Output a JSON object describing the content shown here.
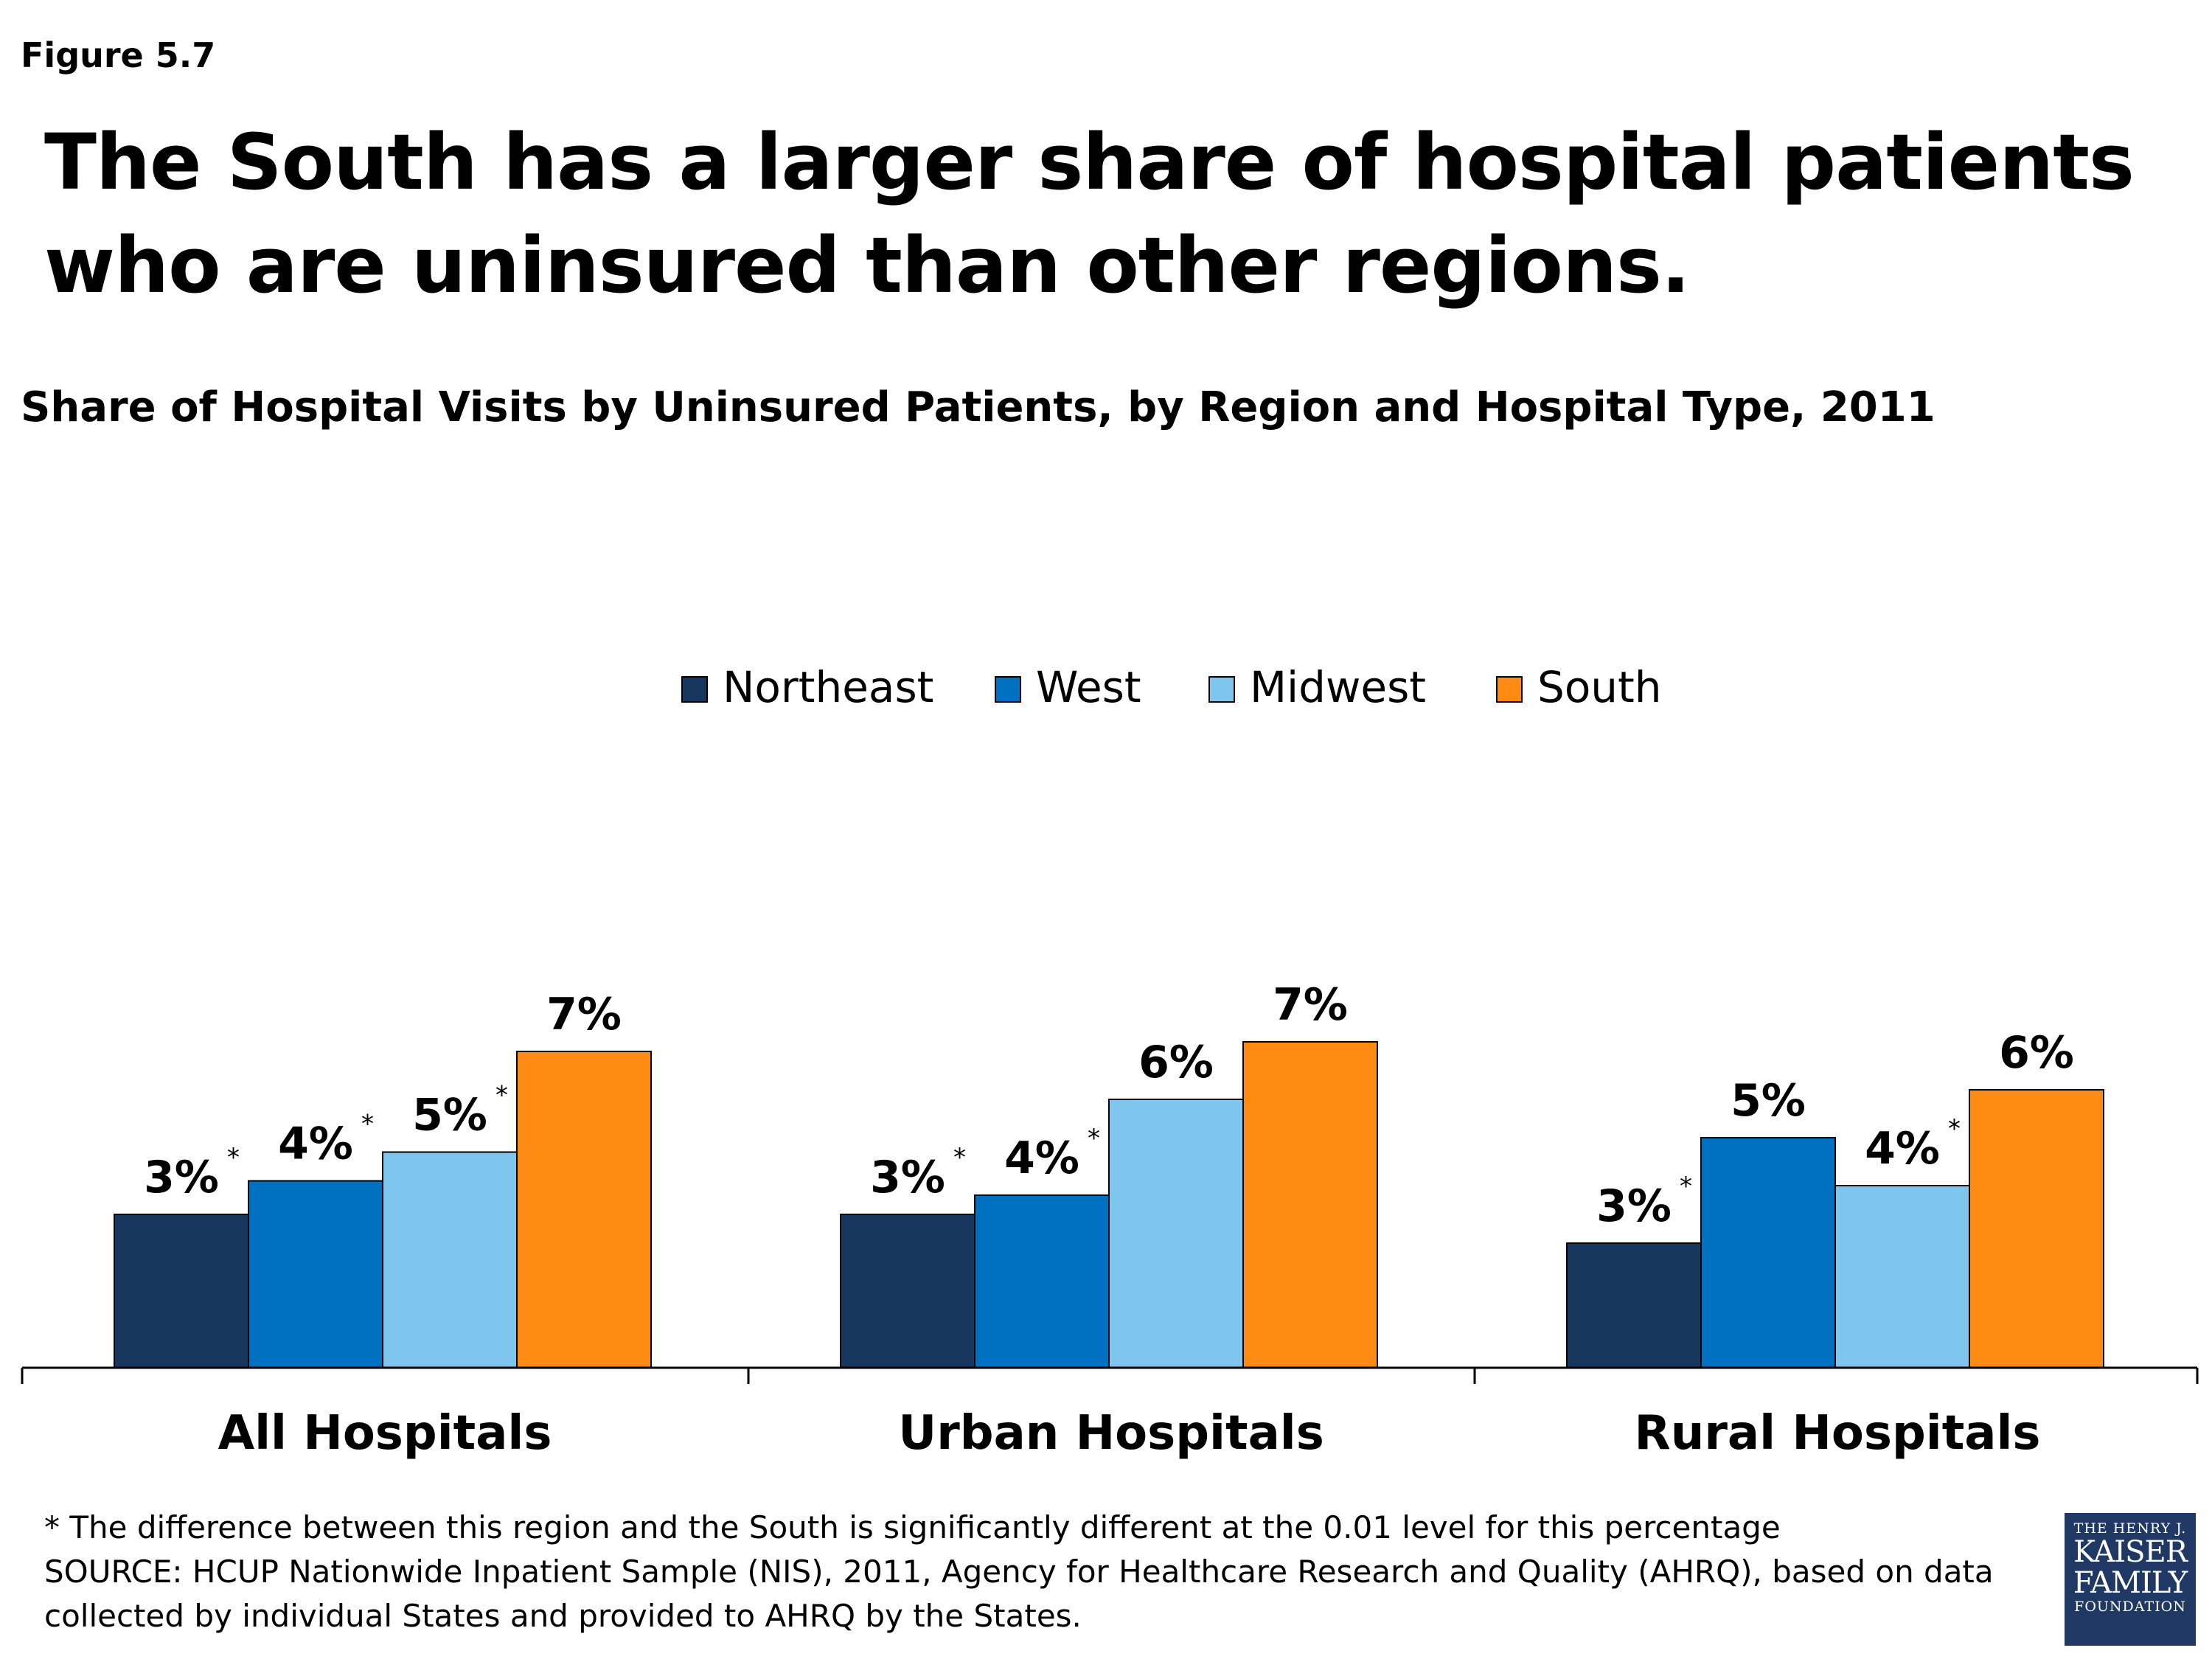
{
  "figure_label": "Figure 5.7",
  "headline": "The South has a larger share of hospital patients who are uninsured than other regions.",
  "footnote": {
    "significance": "* The difference between this region and the South is significantly different at the 0.01 level for this percentage",
    "source_line1": "SOURCE: HCUP Nationwide Inpatient Sample (NIS), 2011, Agency for Healthcare Research and Quality (AHRQ), based on data",
    "source_line2": "collected by individual States and provided to AHRQ by the States."
  },
  "logo": {
    "line1": "THE HENRY J.",
    "line2": "KAISER",
    "line3": "FAMILY",
    "line4": "FOUNDATION"
  },
  "chart_data": {
    "type": "bar",
    "title": "Share of Hospital Visits by Uninsured Patients, by Region and Hospital Type, 2011",
    "xlabel": "",
    "ylabel": "",
    "categories": [
      "All Hospitals",
      "Urban Hospitals",
      "Rural Hospitals"
    ],
    "series": [
      {
        "name": "Northeast",
        "color": "#17375e",
        "values": [
          3.2,
          3.2,
          2.6
        ],
        "labels": [
          "3%",
          "3%",
          "3%"
        ],
        "significant": [
          true,
          true,
          true
        ]
      },
      {
        "name": "West",
        "color": "#0070c0",
        "values": [
          3.9,
          3.6,
          4.8
        ],
        "labels": [
          "4%",
          "4%",
          "5%"
        ],
        "significant": [
          true,
          true,
          false
        ]
      },
      {
        "name": "Midwest",
        "color": "#7fc6ee",
        "values": [
          4.5,
          5.6,
          3.8
        ],
        "labels": [
          "5%",
          "6%",
          "4%"
        ],
        "significant": [
          true,
          false,
          true
        ]
      },
      {
        "name": "South",
        "color": "#fd8a13",
        "values": [
          6.6,
          6.8,
          5.8
        ],
        "labels": [
          "7%",
          "7%",
          "6%"
        ],
        "significant": [
          false,
          false,
          false
        ]
      }
    ],
    "significance_marker": "*",
    "ylim": [
      0,
      10
    ],
    "grid": false,
    "legend_position": "top-center"
  }
}
